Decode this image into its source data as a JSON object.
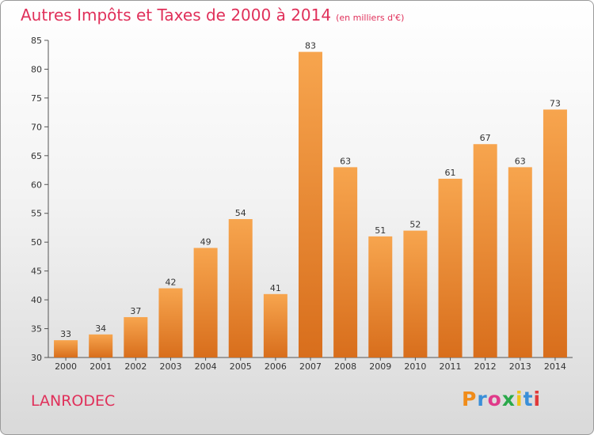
{
  "title": "Autres Impôts et Taxes de 2000 à 2014",
  "subtitle": "(en milliers d'€)",
  "commune": "LANRODEC",
  "brand": {
    "letters": [
      "P",
      "r",
      "o",
      "x",
      "i",
      "t",
      "i"
    ],
    "colors": [
      "#f08c1a",
      "#3a8fd8",
      "#e03a8a",
      "#2aa84a",
      "#f0c419",
      "#3a8fd8",
      "#e03a3a"
    ]
  },
  "colors": {
    "bar_light": "#f7a54e",
    "bar_dark": "#d86e1c",
    "title": "#e0305a"
  },
  "chart_data": {
    "type": "bar",
    "categories": [
      "2000",
      "2001",
      "2002",
      "2003",
      "2004",
      "2005",
      "2006",
      "2007",
      "2008",
      "2009",
      "2010",
      "2011",
      "2012",
      "2013",
      "2014"
    ],
    "values": [
      33,
      34,
      37,
      42,
      49,
      54,
      41,
      83,
      63,
      51,
      52,
      61,
      67,
      63,
      73
    ],
    "ylim": [
      30,
      85
    ],
    "yticks": [
      30,
      35,
      40,
      45,
      50,
      55,
      60,
      65,
      70,
      75,
      80,
      85
    ],
    "grid": false,
    "data_labels": true
  }
}
